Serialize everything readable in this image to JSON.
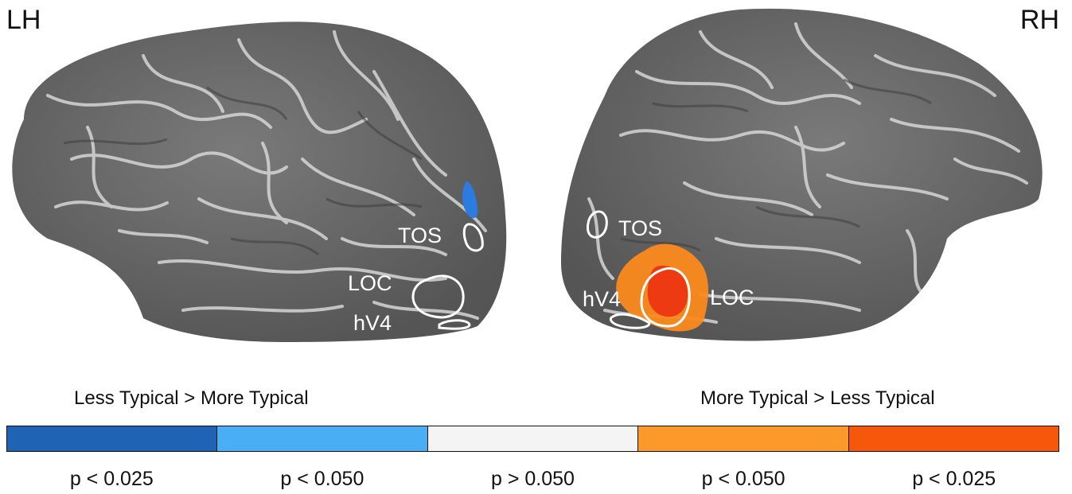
{
  "hemispheres": {
    "left_label": "LH",
    "right_label": "RH"
  },
  "rois": {
    "lh": {
      "tos": "TOS",
      "loc": "LOC",
      "hv4": "hV4"
    },
    "rh": {
      "tos": "TOS",
      "loc": "LOC",
      "hv4": "hV4"
    }
  },
  "legend": {
    "left_title": "Less Typical > More Typical",
    "right_title": "More Typical > Less Typical",
    "segments": [
      {
        "color": "#1f63b4",
        "label": "p < 0.025"
      },
      {
        "color": "#4aaef4",
        "label": "p < 0.050"
      },
      {
        "color": "#f4f4f4",
        "label": "p > 0.050"
      },
      {
        "color": "#fb9a2a",
        "label": "p < 0.050"
      },
      {
        "color": "#f5580a",
        "label": "p < 0.025"
      }
    ]
  },
  "colors": {
    "cortex_base": "#6e6e6e",
    "sulci_lines": "#d8d8d8",
    "roi_outline": "#ffffff",
    "activation_blue": "#2a7ce0",
    "activation_orange": "#fb8a1e",
    "activation_red": "#ee3a12"
  }
}
